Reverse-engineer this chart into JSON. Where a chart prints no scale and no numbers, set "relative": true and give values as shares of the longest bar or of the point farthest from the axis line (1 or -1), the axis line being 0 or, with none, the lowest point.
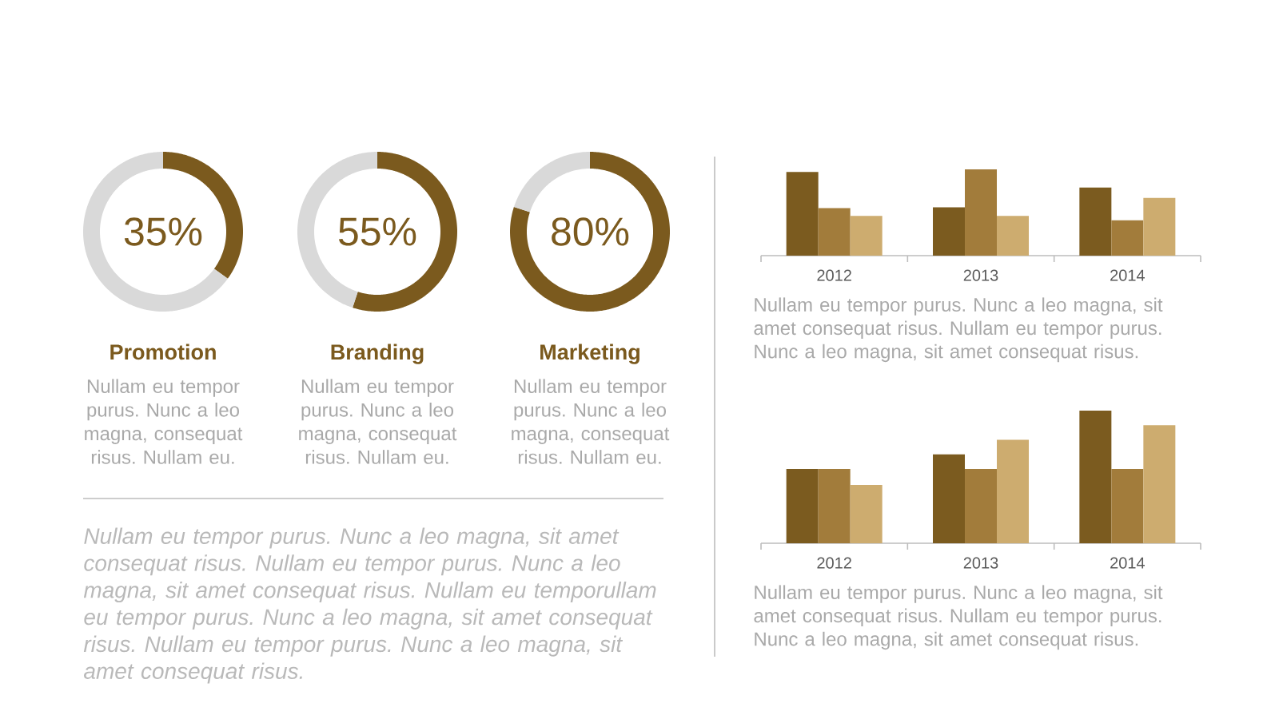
{
  "chart_data": [
    {
      "type": "donut",
      "title": "Promotion",
      "categories": [
        null,
        null
      ],
      "values": [
        35,
        65
      ],
      "colors": [
        "#7b5a1e",
        "#d9d9d9"
      ],
      "value_labels": [
        "35%",
        null
      ],
      "annotations": [
        "Nullam eu tempor purus. Nunc a leo magna, consequat risus. Nullam eu."
      ]
    },
    {
      "type": "donut",
      "title": "Branding",
      "categories": [
        null,
        null
      ],
      "values": [
        55,
        45
      ],
      "colors": [
        "#7b5a1e",
        "#d9d9d9"
      ],
      "value_labels": [
        "55%",
        null
      ],
      "annotations": [
        "Nullam eu tempor purus. Nunc a leo magna, consequat risus. Nullam eu."
      ]
    },
    {
      "type": "donut",
      "title": "Marketing",
      "categories": [
        null,
        null
      ],
      "values": [
        80,
        20
      ],
      "colors": [
        "#7b5a1e",
        "#d9d9d9"
      ],
      "value_labels": [
        "80%",
        null
      ],
      "annotations": [
        "Nullam eu tempor purus. Nunc a leo magna, consequat risus. Nullam eu."
      ]
    },
    {
      "type": "bar",
      "categories": [
        "2012",
        "2013",
        "2014"
      ],
      "relative": true,
      "series": [
        {
          "color": "#7b5b1f",
          "values": [
            0.97,
            0.56,
            0.79
          ]
        },
        {
          "color": "#a27c3b",
          "values": [
            0.55,
            1,
            0.41
          ]
        },
        {
          "color": "#cdac6f",
          "values": [
            0.46,
            0.46,
            0.67
          ]
        }
      ],
      "annotations": [
        "Nullam eu tempor purus. Nunc a leo magna, sit amet consequat risus. Nullam eu tempor purus. Nunc a leo magna, sit amet consequat risus."
      ]
    },
    {
      "type": "bar",
      "categories": [
        "2012",
        "2013",
        "2014"
      ],
      "relative": true,
      "series": [
        {
          "color": "#7b5b1f",
          "values": [
            0.56,
            0.67,
            1
          ]
        },
        {
          "color": "#a27c3b",
          "values": [
            0.56,
            0.56,
            0.56
          ]
        },
        {
          "color": "#cdac6f",
          "values": [
            0.44,
            0.78,
            0.89
          ]
        }
      ],
      "annotations": [
        "Nullam eu tempor purus. Nunc a leo magna, sit amet consequat risus. Nullam eu tempor purus. Nunc a leo magna, sit amet consequat risus."
      ]
    },
    {
      "type": "other",
      "annotations": [
        "Nullam eu tempor purus. Nunc a leo magna, sit amet consequat risus. Nullam eu tempor purus. Nunc a leo magna, sit amet consequat risus. Nullam eu temporullam eu tempor purus. Nunc a leo magna, sit amet consequat risus. Nullam eu tempor purus. Nunc a leo magna, sit amet consequat risus."
      ]
    }
  ]
}
